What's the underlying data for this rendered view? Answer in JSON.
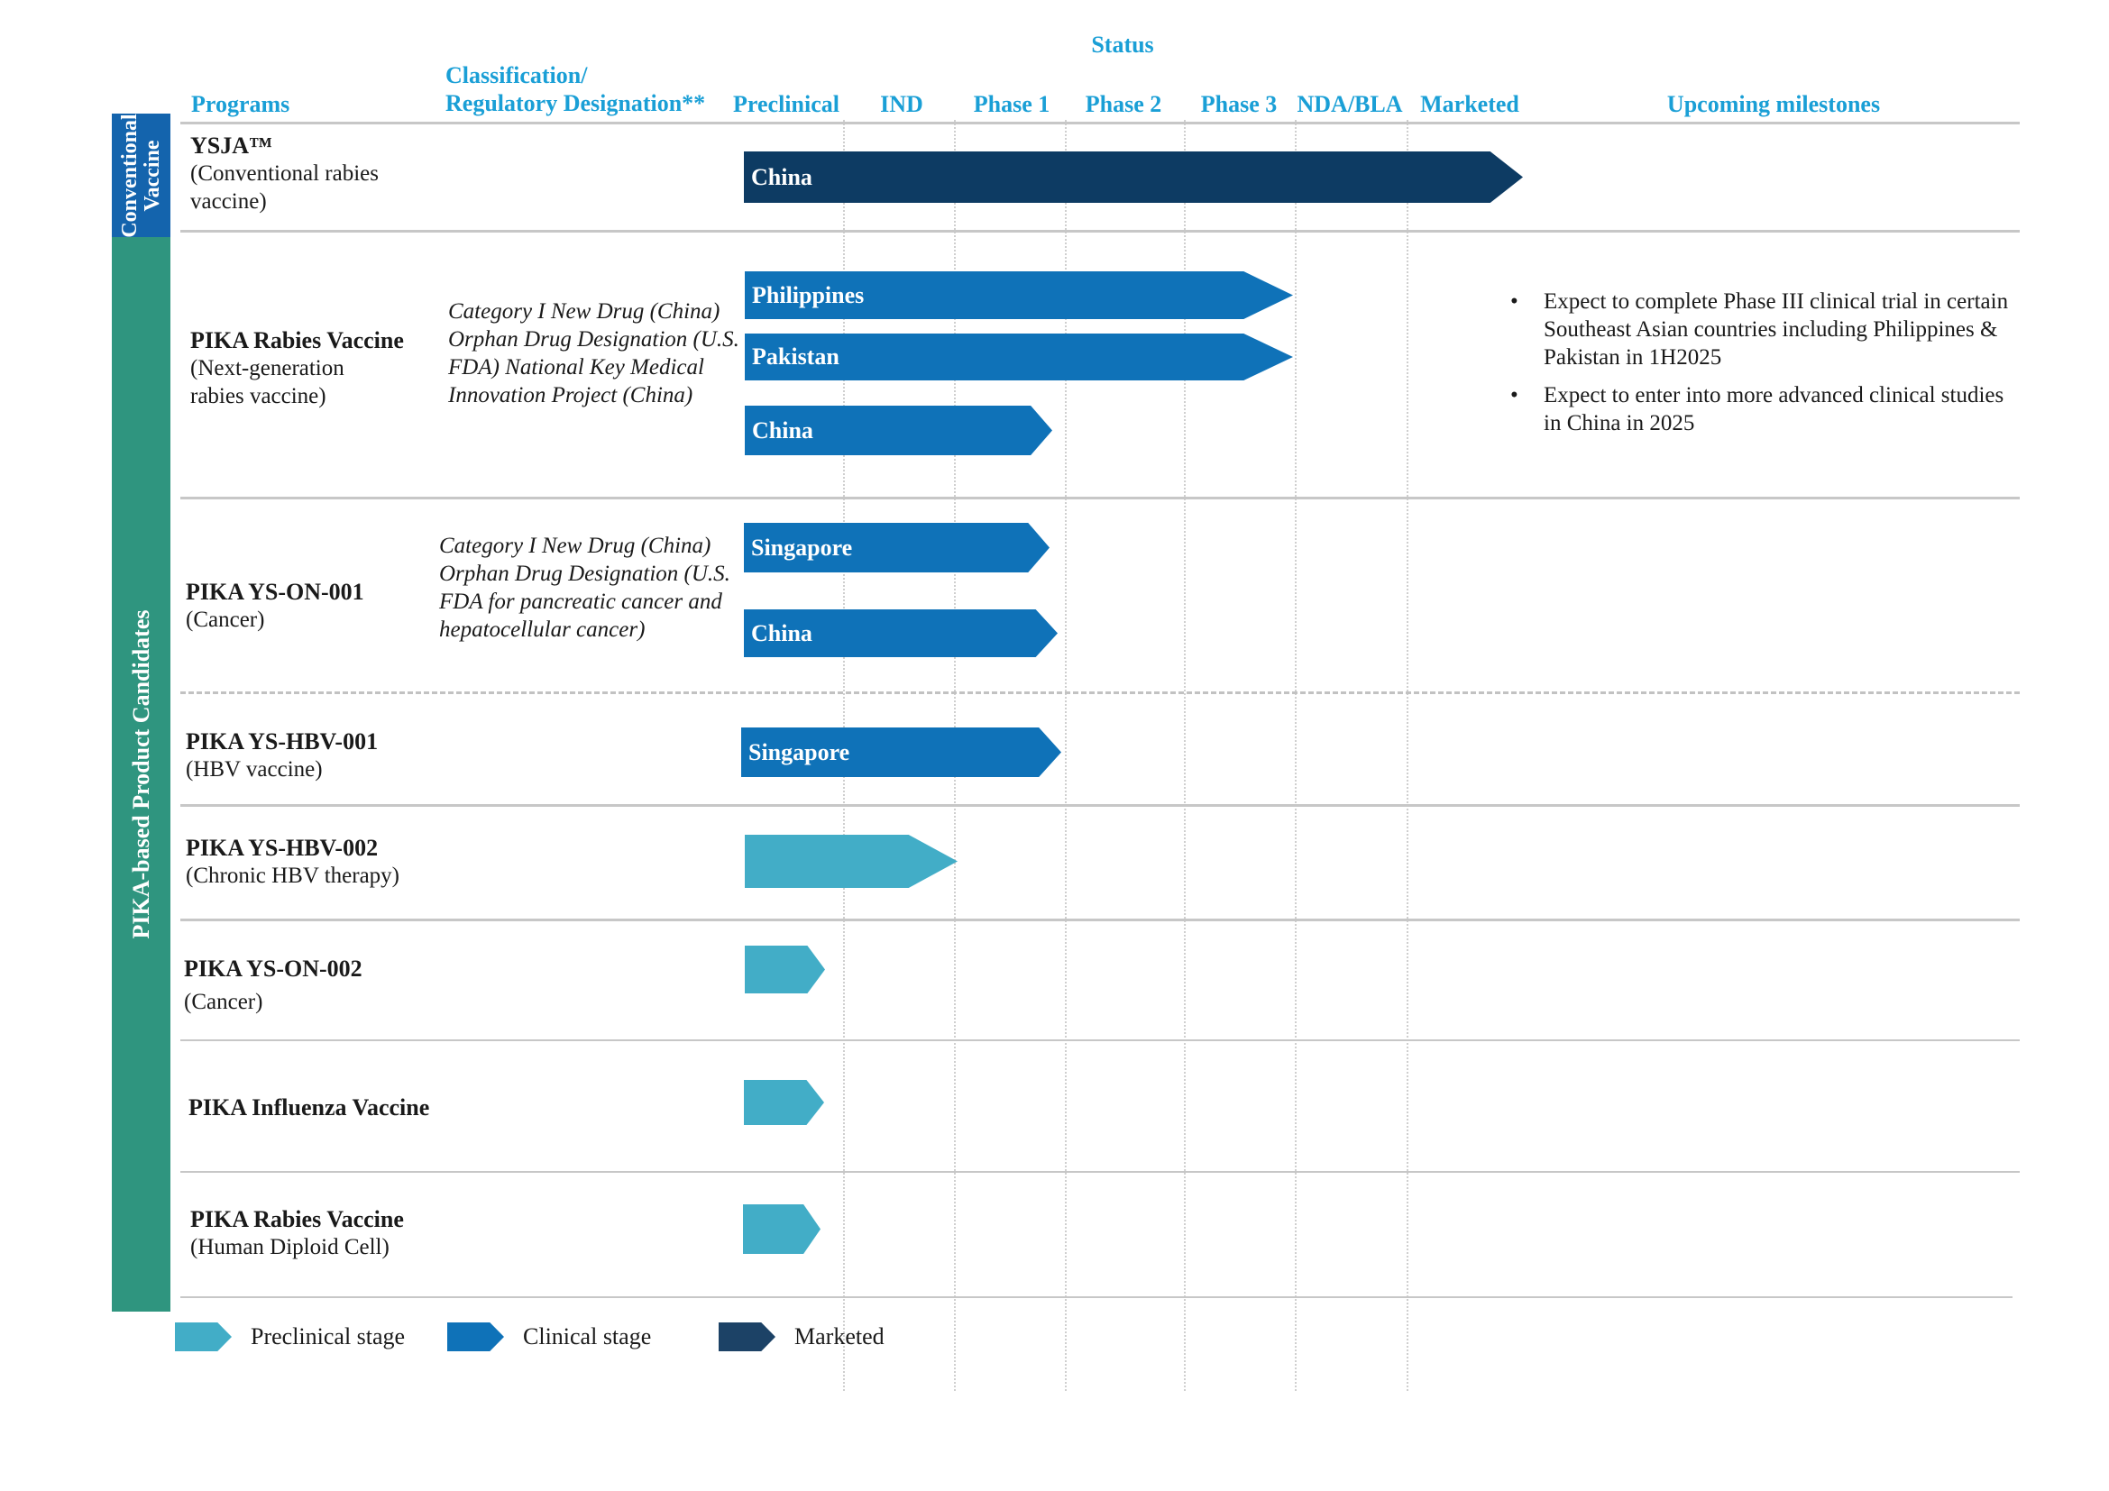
{
  "header": {
    "status": "Status",
    "programs": "Programs",
    "classification_line1": "Classification/",
    "classification_line2": "Regulatory Designation**",
    "stages": [
      "Preclinical",
      "IND",
      "Phase 1",
      "Phase 2",
      "Phase 3",
      "NDA/BLA",
      "Marketed"
    ],
    "milestones": "Upcoming milestones"
  },
  "groups": {
    "conventional": "Conventional Vaccine",
    "conventional_line1": "Conventional",
    "conventional_line2": "Vaccine",
    "pika": "PIKA-based Product Candidates"
  },
  "programs": [
    {
      "name": "YSJA™",
      "sub": "(Conventional rabies vaccine)",
      "classification": "",
      "bars": [
        {
          "label": "China",
          "stage": "marketed",
          "reached": "Marketed"
        }
      ]
    },
    {
      "name": "PIKA Rabies Vaccine",
      "sub": "(Next-generation rabies vaccine)",
      "classification": "Category I New Drug (China) Orphan Drug Designation (U.S. FDA) National Key Medical Innovation Project (China)",
      "bars": [
        {
          "label": "Philippines",
          "stage": "clinical",
          "reached": "Phase 3"
        },
        {
          "label": "Pakistan",
          "stage": "clinical",
          "reached": "Phase 3"
        },
        {
          "label": "China",
          "stage": "clinical",
          "reached": "Phase 1"
        }
      ],
      "milestones": [
        "Expect to complete Phase III clinical trial in certain Southeast Asian countries including Philippines &  Pakistan in 1H2025",
        "Expect to enter into more advanced clinical studies in China in 2025"
      ]
    },
    {
      "name": "PIKA YS-ON-001",
      "sub": "(Cancer)",
      "classification": "Category I New Drug (China) Orphan Drug Designation (U.S. FDA for pancreatic cancer and hepatocellular cancer)",
      "bars": [
        {
          "label": "Singapore",
          "stage": "clinical",
          "reached": "Phase 1"
        },
        {
          "label": "China",
          "stage": "clinical",
          "reached": "Phase 1"
        }
      ]
    },
    {
      "name": "PIKA YS-HBV-001",
      "sub": "(HBV vaccine)",
      "classification": "",
      "bars": [
        {
          "label": "Singapore",
          "stage": "clinical",
          "reached": "Phase 1"
        }
      ]
    },
    {
      "name": "PIKA YS-HBV-002",
      "sub": "(Chronic HBV therapy)",
      "classification": "",
      "bars": [
        {
          "label": "",
          "stage": "preclinical",
          "reached": "IND"
        }
      ]
    },
    {
      "name": "PIKA YS-ON-002",
      "sub": "(Cancer)",
      "classification": "",
      "bars": [
        {
          "label": "",
          "stage": "preclinical",
          "reached": "Preclinical"
        }
      ]
    },
    {
      "name": "PIKA Influenza Vaccine",
      "sub": "",
      "classification": "",
      "bars": [
        {
          "label": "",
          "stage": "preclinical",
          "reached": "Preclinical"
        }
      ]
    },
    {
      "name": "PIKA Rabies Vaccine",
      "sub": "(Human Diploid Cell)",
      "classification": "",
      "bars": [
        {
          "label": "",
          "stage": "preclinical",
          "reached": "Preclinical"
        }
      ]
    }
  ],
  "legend": [
    {
      "label": "Preclinical stage",
      "color": "#42adc7"
    },
    {
      "label": "Clinical stage",
      "color": "#0f72b8"
    },
    {
      "label": "Marketed",
      "color": "#1c4266"
    }
  ],
  "colors": {
    "header_text": "#1a9fd6",
    "marketed": "#0d3b63",
    "clinical": "#0f72b8",
    "preclinical": "#42adc7",
    "conventional_band": "#1464ad",
    "pika_band": "#2f957f"
  }
}
